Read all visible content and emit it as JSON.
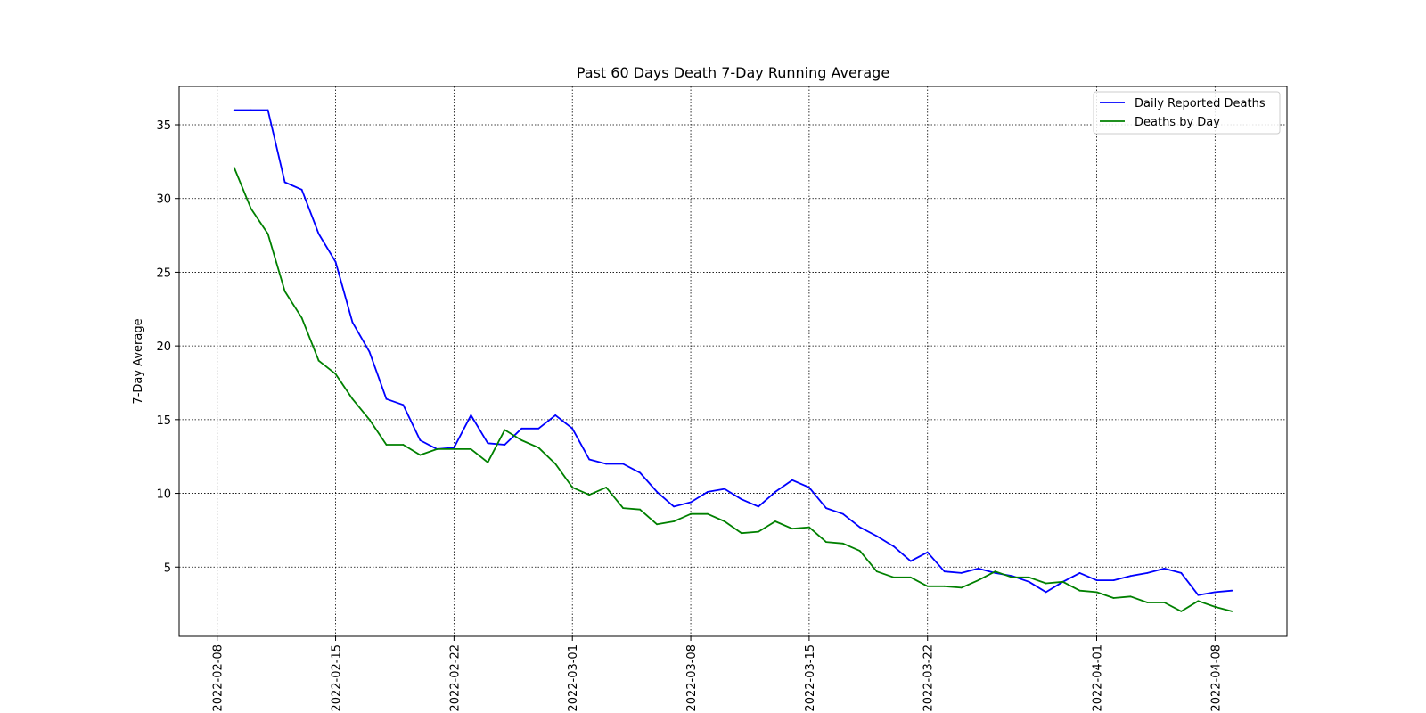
{
  "chart_data": {
    "type": "line",
    "title": "Past 60 Days Death 7-Day Running Average",
    "xlabel": "",
    "ylabel": "7-Day Average",
    "x_start": "2022-02-09",
    "x_ticks": [
      "2022-02-08",
      "2022-02-15",
      "2022-02-22",
      "2022-03-01",
      "2022-03-08",
      "2022-03-15",
      "2022-03-22",
      "2022-04-01",
      "2022-04-08"
    ],
    "y_ticks": [
      5,
      10,
      15,
      20,
      25,
      30,
      35
    ],
    "xlim": [
      "2022-02-05 18:00",
      "2022-04-12 06:00"
    ],
    "ylim": [
      0.3,
      37.6
    ],
    "grid": true,
    "legend_position": "upper right",
    "series": [
      {
        "name": "Daily Reported Deaths",
        "color": "#0000ff",
        "x": [
          "2022-02-09",
          "2022-02-10",
          "2022-02-11",
          "2022-02-12",
          "2022-02-13",
          "2022-02-14",
          "2022-02-15",
          "2022-02-16",
          "2022-02-17",
          "2022-02-18",
          "2022-02-19",
          "2022-02-20",
          "2022-02-21",
          "2022-02-22",
          "2022-02-23",
          "2022-02-24",
          "2022-02-25",
          "2022-02-26",
          "2022-02-27",
          "2022-02-28",
          "2022-03-01",
          "2022-03-02",
          "2022-03-03",
          "2022-03-04",
          "2022-03-05",
          "2022-03-06",
          "2022-03-07",
          "2022-03-08",
          "2022-03-09",
          "2022-03-10",
          "2022-03-11",
          "2022-03-12",
          "2022-03-13",
          "2022-03-14",
          "2022-03-15",
          "2022-03-16",
          "2022-03-17",
          "2022-03-18",
          "2022-03-19",
          "2022-03-20",
          "2022-03-21",
          "2022-03-22",
          "2022-03-23",
          "2022-03-24",
          "2022-03-25",
          "2022-03-26",
          "2022-03-27",
          "2022-03-28",
          "2022-03-29",
          "2022-03-30",
          "2022-03-31",
          "2022-04-01",
          "2022-04-02",
          "2022-04-03",
          "2022-04-04",
          "2022-04-05",
          "2022-04-06",
          "2022-04-07",
          "2022-04-08",
          "2022-04-09"
        ],
        "values": [
          36.0,
          36.0,
          36.0,
          31.1,
          30.6,
          27.6,
          25.7,
          21.6,
          19.6,
          16.4,
          16.0,
          13.6,
          13.0,
          13.1,
          15.3,
          13.4,
          13.3,
          14.4,
          14.4,
          15.3,
          14.4,
          12.3,
          12.0,
          12.0,
          11.4,
          10.1,
          9.1,
          9.4,
          10.1,
          10.3,
          9.6,
          9.1,
          10.1,
          10.9,
          10.4,
          9.0,
          8.6,
          7.7,
          7.1,
          6.4,
          5.4,
          6.0,
          4.7,
          4.6,
          4.9,
          4.6,
          4.4,
          4.0,
          3.3,
          4.0,
          4.6,
          4.1,
          4.1,
          4.4,
          4.6,
          4.9,
          4.6,
          3.1,
          3.3,
          3.4
        ]
      },
      {
        "name": "Deaths by Day",
        "color": "#008000",
        "x": [
          "2022-02-09",
          "2022-02-10",
          "2022-02-11",
          "2022-02-12",
          "2022-02-13",
          "2022-02-14",
          "2022-02-15",
          "2022-02-16",
          "2022-02-17",
          "2022-02-18",
          "2022-02-19",
          "2022-02-20",
          "2022-02-21",
          "2022-02-22",
          "2022-02-23",
          "2022-02-24",
          "2022-02-25",
          "2022-02-26",
          "2022-02-27",
          "2022-02-28",
          "2022-03-01",
          "2022-03-02",
          "2022-03-03",
          "2022-03-04",
          "2022-03-05",
          "2022-03-06",
          "2022-03-07",
          "2022-03-08",
          "2022-03-09",
          "2022-03-10",
          "2022-03-11",
          "2022-03-12",
          "2022-03-13",
          "2022-03-14",
          "2022-03-15",
          "2022-03-16",
          "2022-03-17",
          "2022-03-18",
          "2022-03-19",
          "2022-03-20",
          "2022-03-21",
          "2022-03-22",
          "2022-03-23",
          "2022-03-24",
          "2022-03-25",
          "2022-03-26",
          "2022-03-27",
          "2022-03-28",
          "2022-03-29",
          "2022-03-30",
          "2022-03-31",
          "2022-04-01",
          "2022-04-02",
          "2022-04-03",
          "2022-04-04",
          "2022-04-05",
          "2022-04-06",
          "2022-04-07",
          "2022-04-08",
          "2022-04-09"
        ],
        "values": [
          32.1,
          29.3,
          27.6,
          23.7,
          21.9,
          19.0,
          18.1,
          16.4,
          15.0,
          13.3,
          13.3,
          12.6,
          13.0,
          13.0,
          13.0,
          12.1,
          14.3,
          13.6,
          13.1,
          12.0,
          10.4,
          9.9,
          10.4,
          9.0,
          8.9,
          7.9,
          8.1,
          8.6,
          8.6,
          8.1,
          7.3,
          7.4,
          8.1,
          7.6,
          7.7,
          6.7,
          6.6,
          6.1,
          4.7,
          4.3,
          4.3,
          3.7,
          3.7,
          3.6,
          4.1,
          4.7,
          4.3,
          4.3,
          3.9,
          4.0,
          3.4,
          3.3,
          2.9,
          3.0,
          2.6,
          2.6,
          2.0,
          2.7,
          2.3,
          2.0
        ]
      }
    ]
  }
}
